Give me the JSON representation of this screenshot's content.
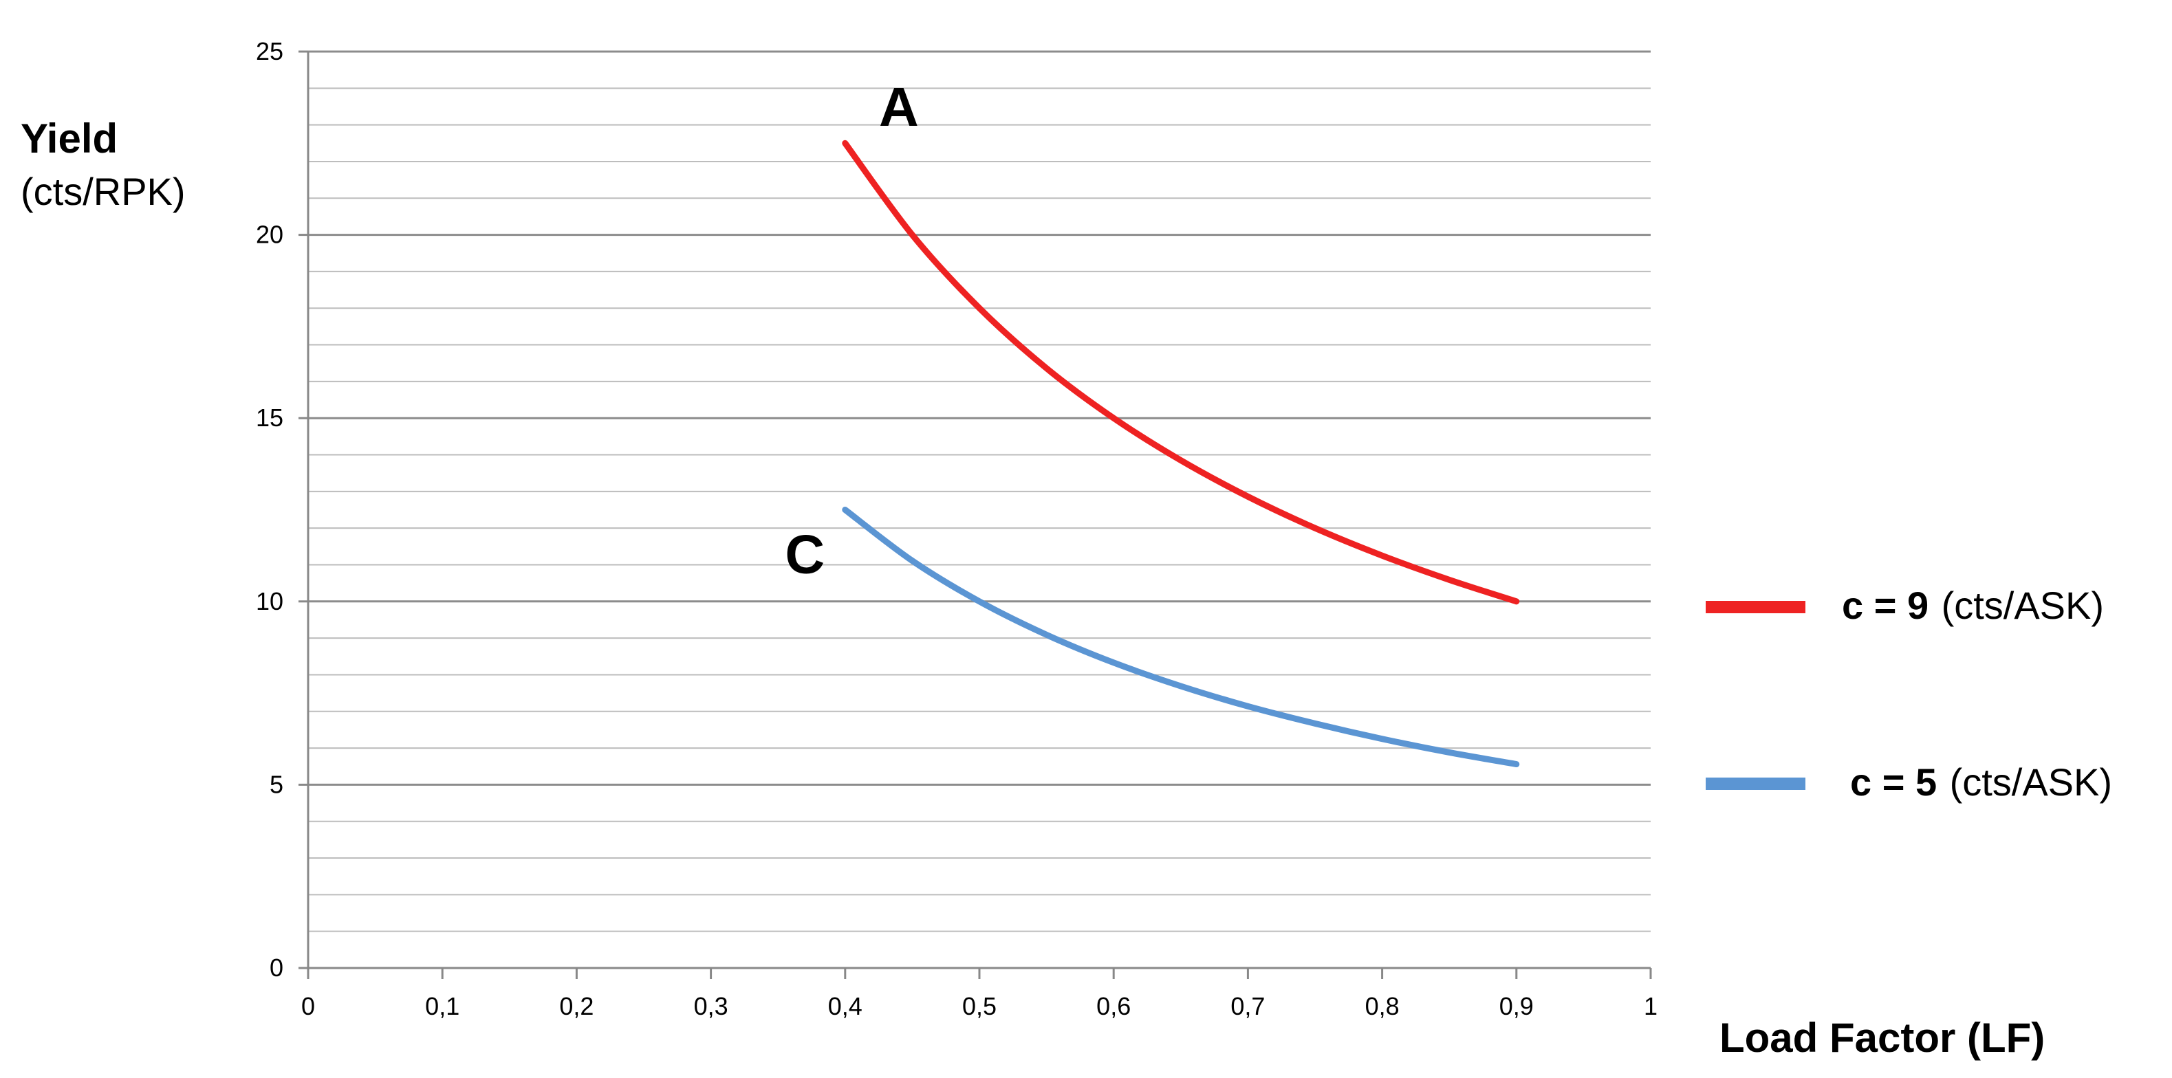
{
  "chart_data": {
    "type": "line",
    "title": "",
    "ylabel": "Yield",
    "ylabel_unit": "(cts/RPK)",
    "xlabel": "Load Factor (LF)",
    "xlim": [
      0,
      1
    ],
    "ylim": [
      0,
      25
    ],
    "x_ticks": [
      "0",
      "0,1",
      "0,2",
      "0,3",
      "0,4",
      "0,5",
      "0,6",
      "0,7",
      "0,8",
      "0,9",
      "1"
    ],
    "y_ticks": [
      "0",
      "5",
      "10",
      "15",
      "20",
      "25"
    ],
    "grid": true,
    "legend_position": "right",
    "series": [
      {
        "name": "c = 9",
        "name_unit": "(cts/ASK)",
        "color": "#ee2222",
        "x": [
          0.4,
          0.45,
          0.5,
          0.55,
          0.6,
          0.65,
          0.7,
          0.75,
          0.8,
          0.85,
          0.9
        ],
        "y": [
          22.5,
          20.0,
          18.0,
          16.36,
          15.0,
          13.85,
          12.86,
          12.0,
          11.25,
          10.59,
          10.0
        ]
      },
      {
        "name": "c = 5",
        "name_unit": "(cts/ASK)",
        "color": "#5b95d3",
        "x": [
          0.4,
          0.45,
          0.5,
          0.55,
          0.6,
          0.65,
          0.7,
          0.75,
          0.8,
          0.85,
          0.9
        ],
        "y": [
          12.5,
          11.11,
          10.0,
          9.09,
          8.33,
          7.69,
          7.14,
          6.67,
          6.25,
          5.88,
          5.56
        ]
      }
    ],
    "annotations": [
      {
        "text": "A",
        "x": 0.44,
        "y": 23.5
      },
      {
        "text": "C",
        "x": 0.37,
        "y": 11.3
      }
    ]
  }
}
